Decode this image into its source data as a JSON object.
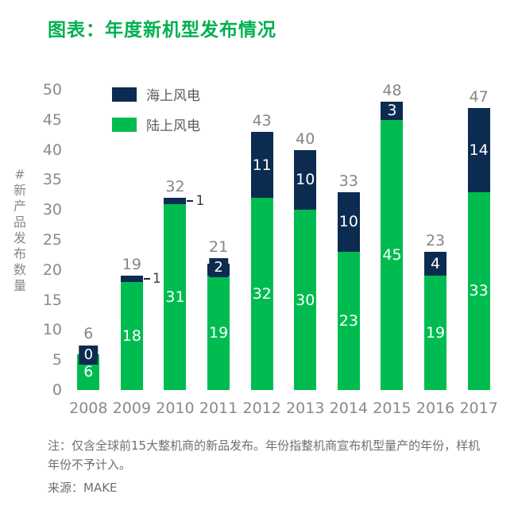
{
  "title": "图表：年度新机型发布情况",
  "legend": {
    "items": [
      {
        "label": "海上风电",
        "color": "#0C2B50"
      },
      {
        "label": "陆上风电",
        "color": "#00BC50"
      }
    ]
  },
  "y_axis": {
    "title": "#新产品发布数量"
  },
  "notes": {
    "note": "注：仅含全球前15大整机商的新品发布。年份指整机商宣布机型量产的年份，样机年份不予计入。",
    "source": "来源：MAKE"
  },
  "colors": {
    "title": "#00B050",
    "onshore": "#00BC50",
    "offshore": "#0C2B50",
    "axis_text": "#8a8a8a",
    "note_text": "#6f6f6f"
  },
  "chart_data": {
    "type": "bar",
    "stacked": true,
    "title": "图表：年度新机型发布情况",
    "categories": [
      "2008",
      "2009",
      "2010",
      "2011",
      "2012",
      "2013",
      "2014",
      "2015",
      "2016",
      "2017"
    ],
    "series": [
      {
        "name": "陆上风电",
        "color": "#00BC50",
        "values": [
          6,
          18,
          31,
          19,
          32,
          30,
          23,
          45,
          19,
          33
        ]
      },
      {
        "name": "海上风电",
        "color": "#0C2B50",
        "values": [
          0,
          1,
          1,
          2,
          11,
          10,
          10,
          3,
          4,
          14
        ]
      }
    ],
    "totals": [
      6,
      19,
      32,
      21,
      43,
      40,
      33,
      48,
      23,
      47
    ],
    "xlabel": "",
    "ylabel": "#新产品发布数量",
    "ylim": [
      0,
      50
    ],
    "ytick_step": 5,
    "grid": false,
    "legend_position": "top-left"
  }
}
